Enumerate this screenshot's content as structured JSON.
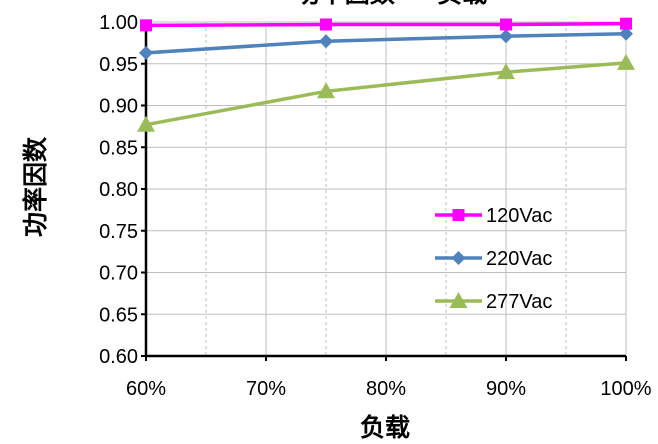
{
  "chart_data": {
    "type": "line",
    "title": "功率因数 — 负载",
    "xlabel": "负载",
    "ylabel": "功率因数",
    "x": [
      0.6,
      0.75,
      0.9,
      1.0
    ],
    "xlim": [
      0.6,
      1.0
    ],
    "x_ticks": [
      {
        "value": 0.6,
        "label": "60%"
      },
      {
        "value": 0.7,
        "label": "70%"
      },
      {
        "value": 0.8,
        "label": "80%"
      },
      {
        "value": 0.9,
        "label": "90%"
      },
      {
        "value": 1.0,
        "label": "100%"
      }
    ],
    "ylim": [
      0.6,
      1.0
    ],
    "y_ticks": [
      "0.60",
      "0.65",
      "0.70",
      "0.75",
      "0.80",
      "0.85",
      "0.90",
      "0.95",
      "1.00"
    ],
    "grid": true,
    "legend_position": "lower-right",
    "series": [
      {
        "name": "120Vac",
        "color": "#ff00ff",
        "marker": "square",
        "values": [
          0.996,
          0.997,
          0.997,
          0.998
        ]
      },
      {
        "name": "220Vac",
        "color": "#4f81bd",
        "marker": "diamond",
        "values": [
          0.963,
          0.977,
          0.983,
          0.986
        ]
      },
      {
        "name": "277Vac",
        "color": "#9bbb59",
        "marker": "triangle",
        "values": [
          0.877,
          0.917,
          0.94,
          0.951
        ]
      }
    ]
  }
}
